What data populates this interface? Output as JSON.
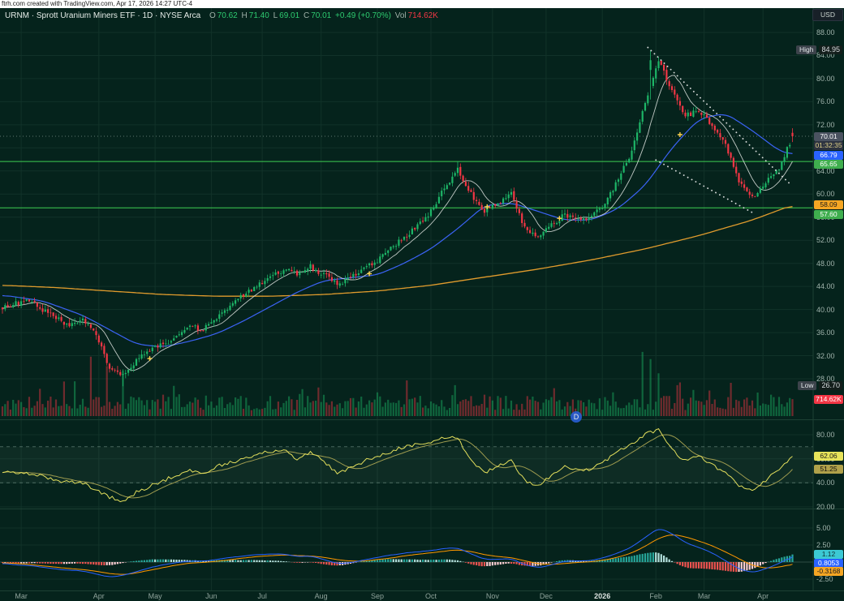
{
  "attribution": "ftrh.com created with TradingView.com, Apr 17, 2026 14:27 UTC-4",
  "header": {
    "title": "URNM · Sprott Uranium Miners ETF · 1D · NYSE Arca",
    "ohlc": {
      "o_label": "O",
      "o_value": "70.62",
      "h_label": "H",
      "h_value": "71.40",
      "l_label": "L",
      "l_value": "69.01",
      "c_label": "C",
      "c_value": "70.01",
      "change": "+0.49 (+0.70%)"
    },
    "vol_label": "Vol",
    "vol_value": "714.62K"
  },
  "axis": {
    "currency": "USD",
    "price_labels": [
      "88.00",
      "84.00",
      "80.00",
      "76.00",
      "72.00",
      "68.00",
      "64.00",
      "60.00",
      "56.00",
      "52.00",
      "48.00",
      "44.00",
      "40.00",
      "36.00",
      "32.00",
      "28.00"
    ],
    "high_chip": {
      "label": "High",
      "value": "84.95"
    },
    "low_chip": {
      "label": "Low",
      "value": "26.70"
    },
    "last_price": "70.01",
    "countdown": "01:32:35",
    "ma_fast_value": "66.79",
    "level_upper_value": "65.65",
    "ma_slow_value": "58.09",
    "level_lower_value": "57.60",
    "volume_value": "714.62K",
    "rsi_labels": [
      "80.00",
      "60.00",
      "40.00",
      "20.00"
    ],
    "rsi_value": "62.06",
    "rsi_ma_value": "51.25",
    "macd_labels": [
      "5.00",
      "2.50",
      "0.00",
      "-2.50"
    ],
    "macd_hist_value": "1.12",
    "macd_value": "0.8053",
    "macd_signal_value": "-0.3168"
  },
  "timeline": {
    "months": [
      [
        "Mar",
        7
      ],
      [
        "Apr",
        36
      ],
      [
        "May",
        57
      ],
      [
        "Jun",
        78
      ],
      [
        "Jul",
        97
      ],
      [
        "Aug",
        119
      ],
      [
        "Sep",
        140
      ],
      [
        "Oct",
        160
      ],
      [
        "Nov",
        183
      ],
      [
        "Dec",
        203
      ],
      [
        "2026",
        224
      ],
      [
        "Feb",
        244
      ],
      [
        "Mar",
        262
      ],
      [
        "Apr",
        284
      ]
    ],
    "year_label": "2026"
  },
  "watermark_letter": "D",
  "chart_data": {
    "type": "candlestick",
    "symbol": "URNM",
    "interval": "1D",
    "exchange": "NYSE Arca",
    "title": "Sprott Uranium Miners ETF",
    "price_axis": {
      "min": 28,
      "max": 88,
      "tick": 4
    },
    "high": 84.95,
    "low": 26.7,
    "last_bar": {
      "open": 70.62,
      "high": 71.4,
      "low": 69.01,
      "close": 70.01,
      "volume": 714620,
      "volume_label": "714.62K"
    },
    "countdown": "01:32:35",
    "days": 296,
    "weekly_closes": [
      40.5,
      41,
      41.5,
      40,
      38.5,
      37,
      38,
      36,
      29.5,
      28.5,
      31,
      33,
      34,
      35.5,
      37,
      36.5,
      38.5,
      40.5,
      42.5,
      44,
      45.5,
      47,
      46,
      47.5,
      46,
      44.5,
      45.5,
      47,
      48.5,
      50.5,
      52.5,
      54.5,
      57,
      61,
      64.5,
      60,
      57,
      58.5,
      60,
      54,
      52.5,
      54.5,
      56.5,
      55.5,
      56,
      58.5,
      62.5,
      67.5,
      76,
      83,
      78,
      73.5,
      74.5,
      72,
      68.5,
      62,
      59.5,
      62,
      64.5,
      70.01
    ],
    "key_points": {
      "low_day": 45,
      "low": 26.7,
      "high_day": 242,
      "high": 84.95,
      "oct_high_day": 170,
      "oct_high": 65.65
    },
    "levels": [
      65.65,
      57.6
    ],
    "ma_fast": {
      "name": "fast moving average",
      "last": 66.79,
      "anchors": [
        [
          0,
          42.5
        ],
        [
          3,
          41.5
        ],
        [
          6,
          39.0
        ],
        [
          8,
          36.5
        ],
        [
          10,
          34.0
        ],
        [
          12,
          33.5
        ],
        [
          14,
          34.5
        ],
        [
          16,
          35.8
        ],
        [
          18,
          38.0
        ],
        [
          20,
          40.5
        ],
        [
          22,
          43.0
        ],
        [
          24,
          45.0
        ],
        [
          26,
          45.5
        ],
        [
          28,
          46.0
        ],
        [
          30,
          48.0
        ],
        [
          32,
          50.5
        ],
        [
          34,
          54.0
        ],
        [
          36,
          58.0
        ],
        [
          38,
          58.5
        ],
        [
          40,
          57.0
        ],
        [
          42,
          55.5
        ],
        [
          44,
          55.5
        ],
        [
          46,
          57.5
        ],
        [
          48,
          61.5
        ],
        [
          50,
          68.0
        ],
        [
          52,
          73.0
        ],
        [
          54,
          74.0
        ],
        [
          56,
          71.0
        ],
        [
          58,
          67.5
        ],
        [
          59,
          66.79
        ]
      ]
    },
    "ma_slow": {
      "name": "slow moving average",
      "last": 58.09,
      "anchors": [
        [
          0,
          44.2
        ],
        [
          4,
          43.8
        ],
        [
          8,
          43.2
        ],
        [
          12,
          42.6
        ],
        [
          16,
          42.3
        ],
        [
          20,
          42.3
        ],
        [
          24,
          42.6
        ],
        [
          28,
          43.2
        ],
        [
          32,
          44.2
        ],
        [
          36,
          45.6
        ],
        [
          40,
          47.0
        ],
        [
          44,
          48.6
        ],
        [
          48,
          50.5
        ],
        [
          52,
          52.8
        ],
        [
          56,
          55.5
        ],
        [
          59,
          58.09
        ]
      ]
    },
    "rsi": {
      "range": [
        20,
        80
      ],
      "bands": [
        70,
        40
      ],
      "last": 62.06,
      "ma_last": 51.25,
      "weekly": [
        50,
        49,
        48,
        45,
        42,
        41,
        40,
        34,
        28,
        25,
        32,
        37,
        42,
        46,
        50,
        48,
        54,
        57,
        60,
        64,
        66,
        68,
        60,
        65,
        58,
        48,
        52,
        58,
        62,
        66,
        70,
        72,
        74,
        77,
        78,
        58,
        48,
        54,
        58,
        42,
        38,
        46,
        54,
        50,
        52,
        58,
        66,
        72,
        80,
        85,
        68,
        58,
        62,
        55,
        48,
        38,
        34,
        42,
        52,
        62.06
      ]
    },
    "macd": {
      "range": [
        -2.5,
        5
      ],
      "last_macd": 0.8053,
      "last_signal": -0.3168,
      "last_hist": 1.12,
      "weekly_macd": [
        -0.2,
        -0.4,
        -0.5,
        -0.8,
        -1.0,
        -1.2,
        -1.3,
        -1.8,
        -2.2,
        -2.0,
        -1.4,
        -0.8,
        -0.4,
        -0.1,
        0.2,
        0.1,
        0.4,
        0.7,
        0.9,
        1.1,
        1.2,
        1.2,
        0.8,
        0.9,
        0.4,
        -0.2,
        -0.1,
        0.3,
        0.7,
        1.0,
        1.3,
        1.5,
        1.7,
        2.0,
        2.1,
        1.2,
        0.4,
        0.4,
        0.5,
        -0.4,
        -0.8,
        -0.4,
        0.1,
        0.2,
        0.2,
        0.7,
        1.4,
        2.2,
        3.6,
        5.0,
        4.2,
        2.8,
        2.2,
        1.4,
        0.2,
        -1.0,
        -1.6,
        -1.0,
        -0.2,
        0.8053
      ],
      "weekly_signal": [
        -0.1,
        -0.2,
        -0.35,
        -0.55,
        -0.75,
        -0.95,
        -1.1,
        -1.35,
        -1.7,
        -1.85,
        -1.6,
        -1.2,
        -0.8,
        -0.45,
        -0.15,
        -0.05,
        0.1,
        0.35,
        0.6,
        0.8,
        0.95,
        1.05,
        0.95,
        0.9,
        0.7,
        0.35,
        0.15,
        0.15,
        0.35,
        0.6,
        0.9,
        1.15,
        1.35,
        1.6,
        1.8,
        1.55,
        1.1,
        0.8,
        0.65,
        0.2,
        -0.25,
        -0.35,
        -0.2,
        -0.05,
        0.05,
        0.3,
        0.75,
        1.35,
        2.3,
        3.5,
        4.1,
        3.7,
        3.1,
        2.4,
        1.5,
        0.5,
        -0.5,
        -0.9,
        -0.75,
        -0.3168
      ]
    },
    "volume_spikes": [
      [
        33,
        2500000
      ],
      [
        39,
        2100000
      ],
      [
        45,
        1900000
      ],
      [
        60,
        900000
      ],
      [
        118,
        1200000
      ],
      [
        140,
        1000000
      ],
      [
        151,
        1500000
      ],
      [
        169,
        1300000
      ],
      [
        180,
        900000
      ],
      [
        205,
        800000
      ],
      [
        228,
        1000000
      ],
      [
        239,
        2700000
      ],
      [
        242,
        2400000
      ],
      [
        245,
        1800000
      ],
      [
        252,
        1300000
      ],
      [
        258,
        1100000
      ],
      [
        272,
        1400000
      ],
      [
        287,
        900000
      ],
      [
        295,
        714620
      ]
    ],
    "trendlines": [
      {
        "d1": 241,
        "p1": 85.4,
        "d2": 294,
        "p2": 61.8
      },
      {
        "d1": 244,
        "p1": 65.9,
        "d2": 280,
        "p2": 56.8
      }
    ],
    "markers": [
      [
        55,
        31.5
      ],
      [
        137,
        46.2
      ],
      [
        181,
        57.8
      ],
      [
        208,
        55.8
      ],
      [
        253,
        70.3
      ]
    ]
  },
  "colors": {
    "background": "#05231c",
    "grid": "rgba(94,140,122,0.14)",
    "separator": "#1d4033",
    "candle_up": "#1db567",
    "candle_down": "#f23645",
    "volume_up": "rgba(29,181,103,0.45)",
    "volume_down": "rgba(242,54,69,0.45)",
    "ma_short": "#e3e6e3",
    "ma_fast": "#3b63f5",
    "ma_slow": "#e09b2d",
    "level": "#3ecf52",
    "trendline": "#eeeeee",
    "marker": "#ffd34d",
    "last_price_line": "#9db0a8",
    "rsi_line": "#e3df5c",
    "rsi_ma_line": "#9e9b4f",
    "macd_line": "#2962ff",
    "signal_line": "#ff9800",
    "hist_up": "#26a69a",
    "hist_up_fade": "#b2dfdb",
    "hist_down": "#ef5350",
    "hist_down_fade": "#ffcdd2",
    "last_price_badge": "#4a5260",
    "countdown_badge": "#2d3340",
    "countdown_text": "#e0d289",
    "blue_badge": "#2962ff",
    "green_badge": "#3fae4e",
    "orange_badge": "#f5a623",
    "red_badge": "#f23645",
    "rsi_badge": "#e7e35a",
    "rsi_ma_badge": "#b0a14a",
    "hist_badge": "#3cc9d4"
  }
}
